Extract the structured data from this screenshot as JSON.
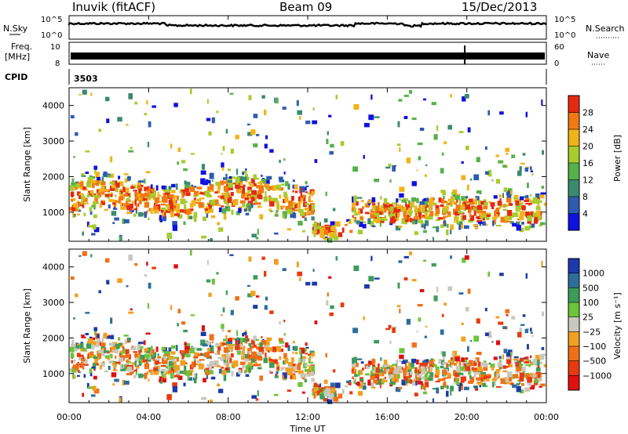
{
  "header": {
    "station": "Inuvik (fitACF)",
    "beam": "Beam 09",
    "date": "15/Dec/2013"
  },
  "top_panels": {
    "nsky_label": "N.Sky",
    "nsky_ticks": [
      "10^5",
      "10^0"
    ],
    "nsearch_label": "N.Search",
    "nsearch_ticks": [
      "10^5",
      "10^0"
    ],
    "freq_label": "Freq.",
    "freq_unit": "[MHz]",
    "freq_ticks": [
      "10",
      "8"
    ],
    "nave_label": "Nave",
    "nave_ticks": [
      "60",
      "0"
    ],
    "cpid_label": "CPID",
    "cpid_value": "3503"
  },
  "chart_data": [
    {
      "type": "heatmap",
      "panel": "power",
      "ylabel": "Slant Range [km]",
      "yticks": [
        "1000",
        "2000",
        "3000",
        "4000"
      ],
      "ylim": [
        180,
        4500
      ],
      "xlim": [
        0,
        24
      ],
      "colorbar": {
        "label": "Power [dB]",
        "ticks": [
          "4",
          "8",
          "12",
          "16",
          "20",
          "24",
          "28"
        ],
        "colors": [
          "#1010e0",
          "#2e5bb0",
          "#3a8a70",
          "#56b14a",
          "#a6cc2e",
          "#f2b319",
          "#f07a12",
          "#e52a10"
        ]
      }
    },
    {
      "type": "heatmap",
      "panel": "velocity",
      "ylabel": "Slant Range [km]",
      "yticks": [
        "1000",
        "2000",
        "3000",
        "4000"
      ],
      "ylim": [
        180,
        4500
      ],
      "xlim": [
        0,
        24
      ],
      "colorbar": {
        "label": "Velocity [m s⁻¹]",
        "ticks": [
          "1000",
          "500",
          "100",
          "25",
          "−25",
          "−100",
          "−500",
          "−1000"
        ],
        "colors": [
          "#1c3aa8",
          "#2e6d9a",
          "#3c9c5a",
          "#6cc43a",
          "#c8c8c0",
          "#f2a020",
          "#f07018",
          "#e83a10",
          "#e01010"
        ]
      }
    }
  ],
  "xaxis": {
    "label": "Time UT",
    "ticks": [
      "00:00",
      "04:00",
      "08:00",
      "12:00",
      "16:00",
      "20:00",
      "00:00"
    ]
  }
}
